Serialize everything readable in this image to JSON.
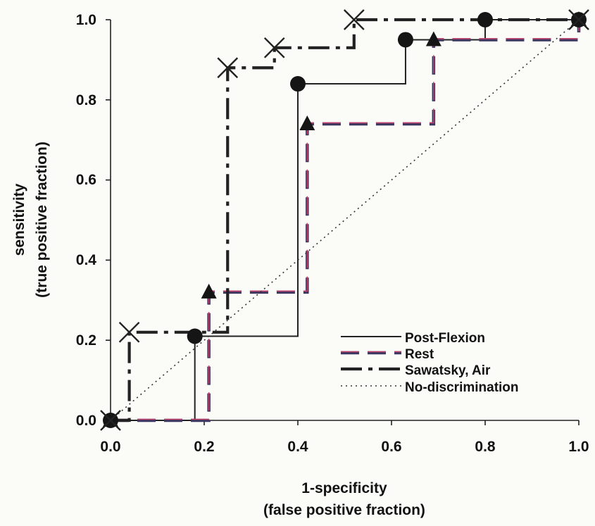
{
  "chart_data": {
    "type": "line",
    "xlabel_lines": [
      "1-specificity",
      "(false positive fraction)"
    ],
    "ylabel_lines": [
      "sensitivity",
      "(true positive fraction)"
    ],
    "xlim": [
      0,
      1
    ],
    "ylim": [
      0,
      1
    ],
    "x_ticks": [
      "0.0",
      "0.2",
      "0.4",
      "0.6",
      "0.8",
      "1.0"
    ],
    "y_ticks": [
      "0.0",
      "0.2",
      "0.4",
      "0.6",
      "0.8",
      "1.0"
    ],
    "grid": false,
    "legend_position": "bottom-right",
    "step_style": "staircase",
    "series": [
      {
        "name": "Post-Flexion",
        "line": "solid",
        "color": "#222222",
        "marker": "circle",
        "points": [
          [
            0,
            0
          ],
          [
            0.18,
            0.21
          ],
          [
            0.4,
            0.84
          ],
          [
            0.63,
            0.95
          ],
          [
            0.8,
            1.0
          ],
          [
            1.0,
            1.0
          ]
        ]
      },
      {
        "name": "Rest",
        "line": "dashed",
        "color": "#3a3760",
        "color2": "#c2416b",
        "marker": "triangle",
        "points": [
          [
            0,
            0
          ],
          [
            0.21,
            0.32
          ],
          [
            0.42,
            0.74
          ],
          [
            0.69,
            0.95
          ],
          [
            1.0,
            1.0
          ]
        ]
      },
      {
        "name": "Sawatsky, Air",
        "line": "dashdot",
        "color": "#222222",
        "marker": "x",
        "points": [
          [
            0,
            0
          ],
          [
            0.04,
            0.22
          ],
          [
            0.25,
            0.88
          ],
          [
            0.35,
            0.93
          ],
          [
            0.52,
            1.0
          ],
          [
            1.0,
            1.0
          ]
        ]
      },
      {
        "name": "No-discrimination",
        "line": "dotted",
        "color": "#333333",
        "marker": "none",
        "points": [
          [
            0,
            0
          ],
          [
            1,
            1
          ]
        ]
      }
    ]
  }
}
